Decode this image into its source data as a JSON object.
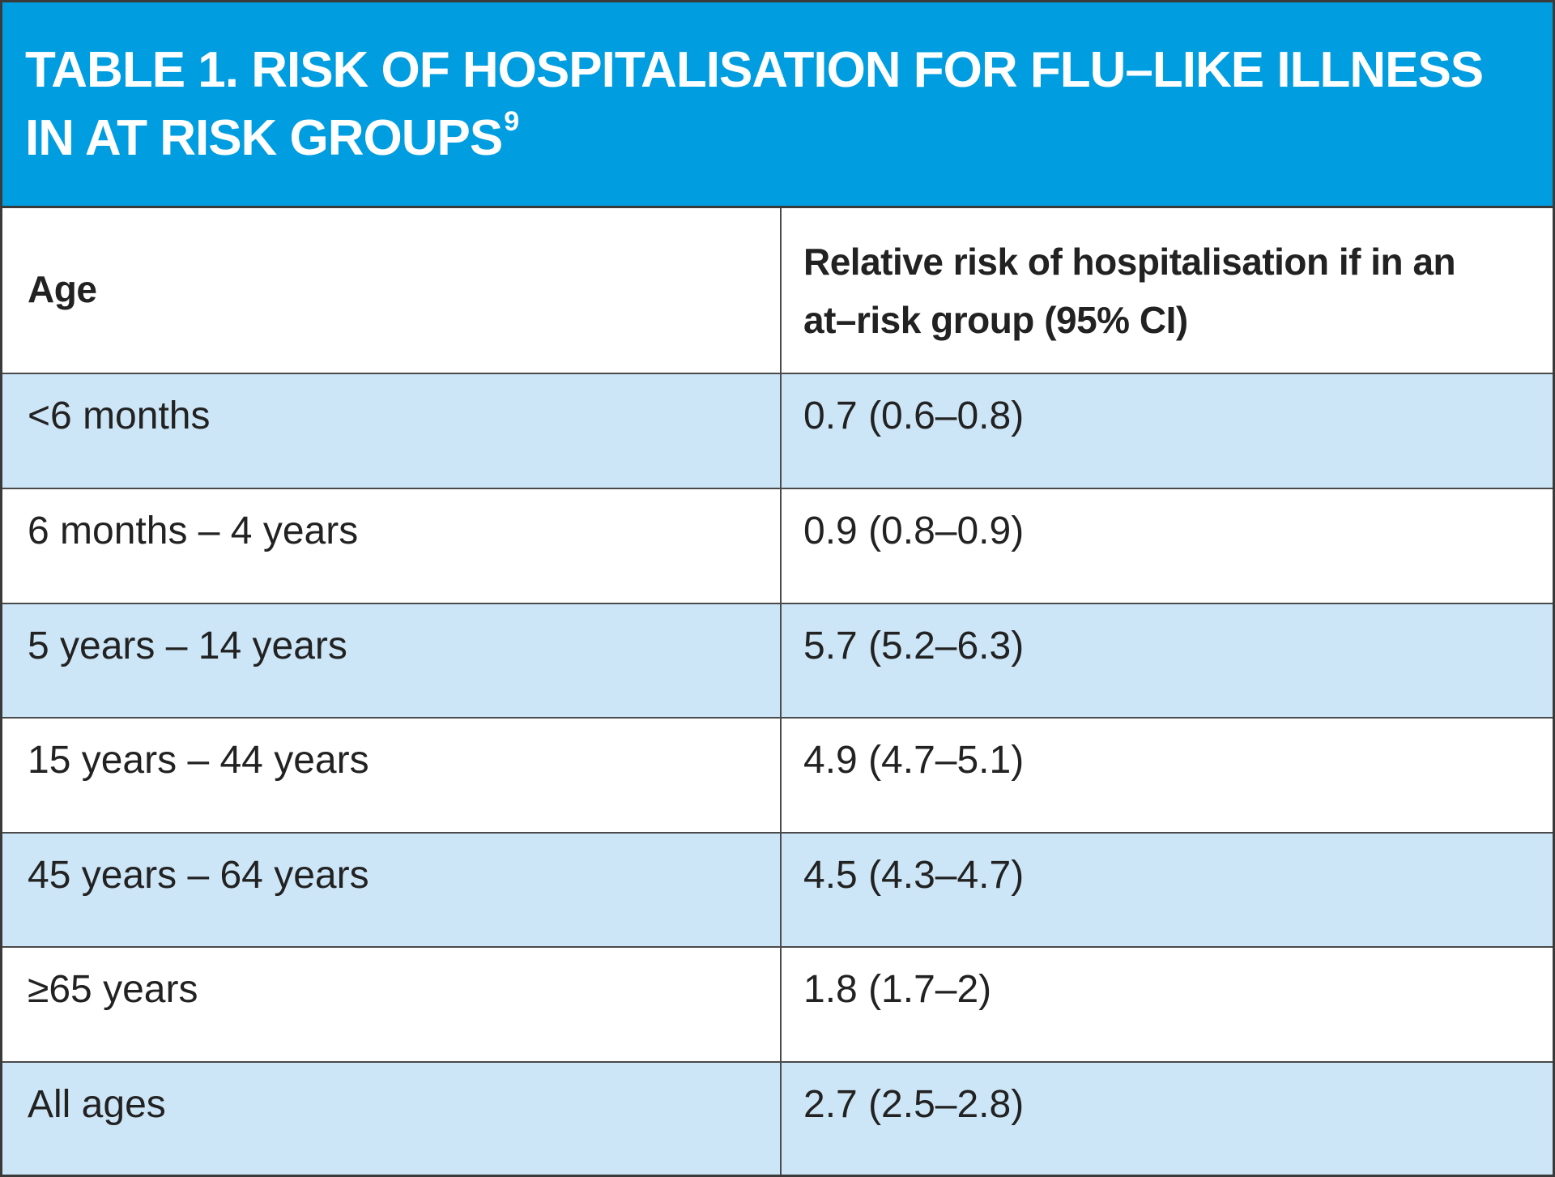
{
  "title": {
    "text": "TABLE 1. RISK OF HOSPITALISATION FOR FLU–LIKE ILLNESS IN AT RISK GROUPS",
    "superscript": "9"
  },
  "colors": {
    "title_bar": "#009ee0",
    "alt_row": "#cde6f7",
    "border": "#3a3a3a"
  },
  "headers": {
    "age": "Age",
    "relative_risk": "Relative risk of hospitalisation if in an at–risk group (95% CI)"
  },
  "rows": [
    {
      "age": "<6 months",
      "risk": "0.7 (0.6–0.8)"
    },
    {
      "age": "6 months – 4 years",
      "risk": "0.9 (0.8–0.9)"
    },
    {
      "age": "5 years – 14 years",
      "risk": "5.7 (5.2–6.3)"
    },
    {
      "age": "15 years – 44 years",
      "risk": "4.9 (4.7–5.1)"
    },
    {
      "age": "45 years – 64 years",
      "risk": "4.5 (4.3–4.7)"
    },
    {
      "age": "≥65 years",
      "risk": "1.8 (1.7–2)"
    },
    {
      "age": "All ages",
      "risk": "2.7 (2.5–2.8)"
    }
  ]
}
